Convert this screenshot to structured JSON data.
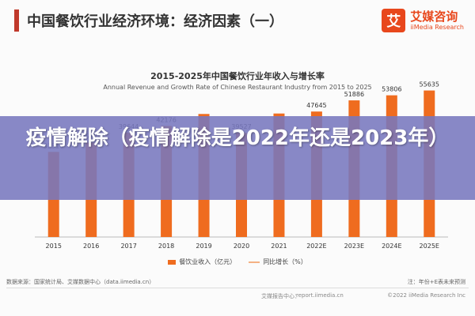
{
  "page": {
    "title": "中国餐饮行业经济环境：经济因素（一）",
    "brand_name": "艾媒咨询",
    "brand_sub": "iiMedia Research",
    "brand_logo_char": "艾"
  },
  "overlay": {
    "text": "疫情解除（疫情解除是2022年还是2023年）"
  },
  "chart_data": {
    "type": "bar",
    "title": "2015-2025年中国餐饮行业年收入与增长率",
    "subtitle": "Annual Revenue and Growth Rate of Chinese Restaurant Industry from 2015 to 2025",
    "categories": [
      "2015",
      "2016",
      "2017",
      "2018",
      "2019",
      "2020",
      "2021",
      "2022E",
      "2023E",
      "2024E",
      "2025E"
    ],
    "series": [
      {
        "name": "餐饮业收入（亿元）",
        "values": [
          32310,
          35799,
          39644,
          42176,
          46721,
          39527,
          46895,
          47645,
          51886,
          53806,
          55635
        ],
        "labels": [
          "32310",
          "35799",
          "39644",
          "42176",
          "",
          "39527",
          "",
          "47645",
          "51886",
          "53806",
          "55635"
        ],
        "color": "#ef6c1f"
      },
      {
        "name": "同比增长（%）",
        "type": "line",
        "color": "#f4b183"
      }
    ],
    "ylim": [
      0,
      60000
    ],
    "grid": false,
    "legend": "bottom"
  },
  "footer": {
    "source": "数据来源：国家统计局、艾媒数据中心（data.iimedia.cn）",
    "note": "注：年份+E表未来预测",
    "brand": "艾媒报告中心：",
    "url": "report.iimedia.cn",
    "copyright": "©2022  iiMedia Research  Inc"
  }
}
